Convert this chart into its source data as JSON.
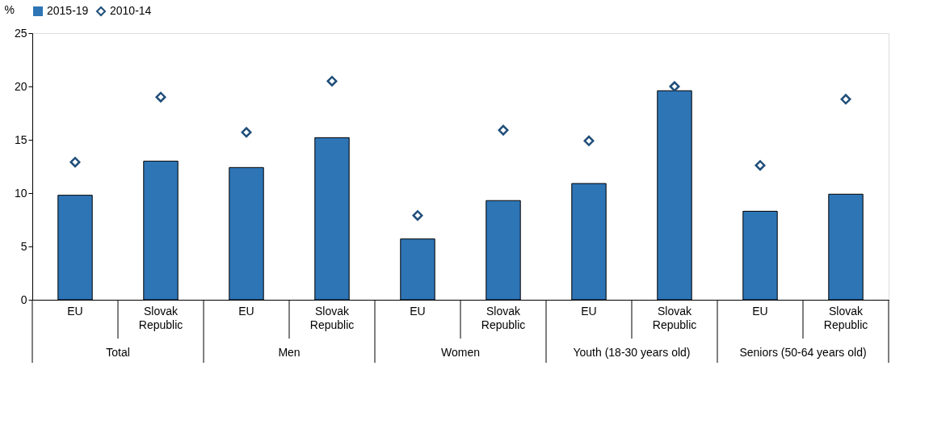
{
  "chart_data": {
    "type": "bar",
    "ylabel": "%",
    "categories": [
      "EU",
      "Slovak Republic",
      "EU",
      "Slovak Republic",
      "EU",
      "Slovak Republic",
      "EU",
      "Slovak Republic",
      "EU",
      "Slovak Republic"
    ],
    "annotations": [
      "Total",
      "Men",
      "Women",
      "Youth (18-30 years old)",
      "Seniors (50-64 years old)"
    ],
    "series": [
      {
        "name": "2015-19",
        "color": "#2e75b6",
        "values": [
          9.8,
          13.0,
          12.4,
          15.2,
          5.7,
          9.3,
          10.9,
          19.6,
          8.3,
          9.9
        ]
      },
      {
        "name": "2010-14",
        "type": "scatter",
        "color": "#1f4e79",
        "values": [
          12.9,
          19.0,
          15.7,
          20.5,
          7.9,
          15.9,
          14.9,
          20.0,
          12.6,
          18.8
        ]
      }
    ],
    "marker": "diamond",
    "legend": "top",
    "grid": false,
    "ylim": [
      0,
      25
    ],
    "yticks": [
      0,
      5,
      10,
      15,
      20,
      25
    ]
  }
}
